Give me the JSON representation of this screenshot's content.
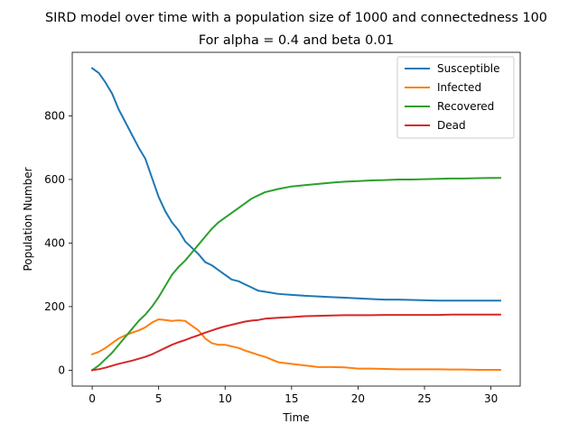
{
  "chart_data": {
    "type": "line",
    "title": "SIRD model over time with a population size of 1000 and connectedness 100",
    "subtitle": "For alpha = 0.4 and beta 0.01",
    "xlabel": "Time",
    "ylabel": "Population Number",
    "xlim": [
      -1.5,
      32.2
    ],
    "ylim": [
      -50,
      1000
    ],
    "xticks": [
      0,
      5,
      10,
      15,
      20,
      25,
      30
    ],
    "yticks": [
      0,
      200,
      400,
      600,
      800
    ],
    "grid": false,
    "legend_position": "top-right",
    "series": [
      {
        "name": "Susceptible",
        "color": "#1f77b4",
        "x": [
          0,
          0.5,
          1,
          1.5,
          2,
          2.5,
          3,
          3.5,
          4,
          4.5,
          5,
          5.5,
          6,
          6.5,
          7,
          7.5,
          8,
          8.5,
          9,
          9.5,
          10,
          10.5,
          11,
          11.5,
          12,
          12.5,
          13,
          14,
          15,
          16,
          17,
          18,
          19,
          20,
          21,
          22,
          23,
          24,
          25,
          26,
          27,
          28,
          29,
          30,
          30.7
        ],
        "y": [
          950,
          935,
          905,
          870,
          820,
          780,
          740,
          700,
          665,
          605,
          545,
          500,
          465,
          440,
          405,
          385,
          365,
          340,
          330,
          315,
          300,
          285,
          280,
          270,
          260,
          250,
          247,
          240,
          237,
          234,
          232,
          230,
          228,
          226,
          224,
          222,
          222,
          221,
          220,
          219,
          219,
          219,
          219,
          219,
          219
        ]
      },
      {
        "name": "Infected",
        "color": "#ff7f0e",
        "x": [
          0,
          0.5,
          1,
          1.5,
          2,
          2.5,
          3,
          3.5,
          4,
          4.5,
          5,
          5.5,
          6,
          6.5,
          7,
          7.5,
          8,
          8.5,
          9,
          9.5,
          10,
          10.5,
          11,
          11.5,
          12,
          12.5,
          13,
          14,
          15,
          16,
          17,
          18,
          19,
          20,
          21,
          22,
          23,
          24,
          25,
          26,
          27,
          28,
          29,
          30,
          30.7
        ],
        "y": [
          50,
          58,
          70,
          85,
          100,
          110,
          118,
          125,
          135,
          150,
          160,
          158,
          155,
          157,
          155,
          140,
          125,
          100,
          85,
          80,
          80,
          75,
          70,
          62,
          55,
          48,
          42,
          25,
          20,
          15,
          10,
          10,
          9,
          5,
          5,
          4,
          3,
          3,
          3,
          3,
          2,
          2,
          1,
          1,
          1
        ]
      },
      {
        "name": "Recovered",
        "color": "#2ca02c",
        "x": [
          0,
          0.5,
          1,
          1.5,
          2,
          2.5,
          3,
          3.5,
          4,
          4.5,
          5,
          5.5,
          6,
          6.5,
          7,
          7.5,
          8,
          8.5,
          9,
          9.5,
          10,
          10.5,
          11,
          11.5,
          12,
          12.5,
          13,
          14,
          15,
          16,
          17,
          18,
          19,
          20,
          21,
          22,
          23,
          24,
          25,
          26,
          27,
          28,
          29,
          30,
          30.7
        ],
        "y": [
          0,
          15,
          35,
          55,
          80,
          105,
          130,
          155,
          175,
          200,
          230,
          265,
          300,
          325,
          345,
          370,
          395,
          420,
          445,
          465,
          480,
          495,
          510,
          525,
          540,
          550,
          560,
          570,
          578,
          582,
          586,
          590,
          593,
          595,
          597,
          598,
          600,
          600,
          601,
          602,
          603,
          603,
          604,
          605,
          605
        ]
      },
      {
        "name": "Dead",
        "color": "#d62728",
        "x": [
          0,
          0.5,
          1,
          1.5,
          2,
          2.5,
          3,
          3.5,
          4,
          4.5,
          5,
          5.5,
          6,
          6.5,
          7,
          7.5,
          8,
          8.5,
          9,
          9.5,
          10,
          10.5,
          11,
          11.5,
          12,
          12.5,
          13,
          14,
          15,
          16,
          17,
          18,
          19,
          20,
          21,
          22,
          23,
          24,
          25,
          26,
          27,
          28,
          29,
          30,
          30.7
        ],
        "y": [
          0,
          3,
          8,
          14,
          20,
          25,
          30,
          36,
          42,
          50,
          60,
          70,
          80,
          88,
          95,
          103,
          110,
          118,
          125,
          132,
          138,
          143,
          148,
          153,
          156,
          158,
          162,
          165,
          167,
          170,
          171,
          172,
          173,
          173,
          173,
          174,
          174,
          174,
          174,
          174,
          175,
          175,
          175,
          175,
          175
        ]
      }
    ]
  }
}
